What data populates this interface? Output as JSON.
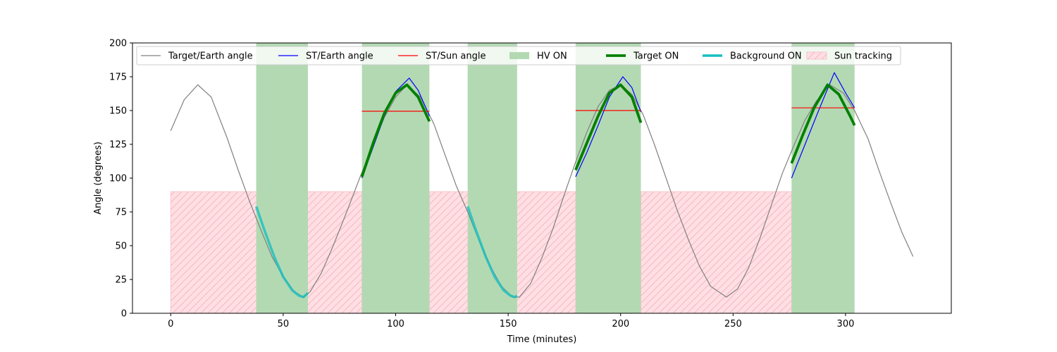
{
  "chart_data": {
    "type": "line",
    "title": "",
    "xlabel": "Time (minutes)",
    "ylabel": "Angle (degrees)",
    "xlim": [
      -17,
      347
    ],
    "ylim": [
      0,
      200
    ],
    "xticks": [
      0,
      50,
      100,
      150,
      200,
      250,
      300
    ],
    "yticks": [
      0,
      25,
      50,
      75,
      100,
      125,
      150,
      175,
      200
    ],
    "grid": false,
    "legend_position": "top",
    "colors": {
      "target_earth": "#808080",
      "st_earth": "#0000ff",
      "st_sun": "#ff0000",
      "hv_on": "#b3d9b3",
      "target_on": "#008000",
      "background_on": "#17bfbf",
      "sun_tracking_fill": "#ffdfe4",
      "sun_tracking_hatch": "#f4b8bf"
    },
    "legend": [
      {
        "key": "target_earth",
        "label": "Target/Earth angle"
      },
      {
        "key": "st_earth",
        "label": "ST/Earth angle"
      },
      {
        "key": "st_sun",
        "label": "ST/Sun angle"
      },
      {
        "key": "hv_on",
        "label": "HV ON"
      },
      {
        "key": "target_on",
        "label": "Target ON"
      },
      {
        "key": "background_on",
        "label": "Background ON"
      },
      {
        "key": "sun_tracking",
        "label": "Sun tracking"
      }
    ],
    "target_earth_angle": {
      "x": [
        0,
        6,
        12,
        18,
        25,
        30,
        35,
        40,
        45,
        50,
        55,
        59,
        62,
        67,
        72,
        78,
        84,
        90,
        95,
        100,
        105,
        111,
        117,
        122,
        127,
        132,
        137,
        142,
        147,
        152,
        155,
        160,
        165,
        170,
        175,
        180,
        185,
        190,
        195,
        200,
        205,
        210,
        215,
        220,
        225,
        230,
        235,
        240,
        247,
        252,
        257,
        262,
        267,
        272,
        277,
        282,
        287,
        293,
        299,
        304,
        310,
        315,
        320,
        325,
        330
      ],
      "y": [
        135,
        158,
        169,
        160,
        130,
        106,
        83,
        62,
        42,
        27,
        16,
        12,
        16,
        30,
        49,
        74,
        100,
        125,
        145,
        160,
        169,
        160,
        140,
        117,
        94,
        75,
        54,
        35,
        20,
        12,
        12,
        22,
        41,
        63,
        88,
        112,
        134,
        153,
        165,
        169,
        162,
        147,
        125,
        101,
        77,
        55,
        35,
        20,
        12,
        18,
        34,
        56,
        80,
        104,
        124,
        143,
        157,
        169,
        163,
        150,
        129,
        105,
        82,
        60,
        42
      ]
    },
    "hv_on": [
      [
        38,
        61
      ],
      [
        85,
        115
      ],
      [
        132,
        154
      ],
      [
        180,
        209
      ],
      [
        276,
        304
      ]
    ],
    "sun_tracking": {
      "ranges": [
        [
          0,
          85
        ],
        [
          115,
          180
        ],
        [
          209,
          276
        ]
      ],
      "y": [
        0,
        90
      ]
    },
    "target_on": [
      {
        "x": [
          85,
          90,
          95,
          100,
          105,
          110,
          115
        ],
        "y": [
          101,
          126,
          148,
          163,
          169,
          160,
          142
        ]
      },
      {
        "x": [
          180,
          185,
          190,
          195,
          200,
          205,
          209
        ],
        "y": [
          106,
          126,
          146,
          163,
          169,
          160,
          141
        ]
      },
      {
        "x": [
          276,
          281,
          286,
          292,
          297,
          302,
          304
        ],
        "y": [
          111,
          132,
          152,
          169,
          162,
          146,
          139
        ]
      }
    ],
    "background_on": [
      {
        "x": [
          38,
          42,
          46,
          50,
          54,
          57,
          59,
          61
        ],
        "y": [
          79,
          60,
          42,
          27,
          17,
          13,
          12,
          15
        ]
      },
      {
        "x": [
          132,
          136,
          140,
          144,
          148,
          151,
          153,
          154
        ],
        "y": [
          79,
          60,
          42,
          27,
          17,
          13,
          12,
          13
        ]
      }
    ],
    "st_earth_angle": [
      {
        "x": [
          85,
          90,
          95,
          100,
          106,
          110,
          115
        ],
        "y": [
          100,
          123,
          146,
          164,
          174,
          165,
          146
        ]
      },
      {
        "x": [
          180,
          185,
          190,
          195,
          201,
          205,
          209
        ],
        "y": [
          101,
          119,
          139,
          160,
          175,
          167,
          149
        ]
      },
      {
        "x": [
          276,
          282,
          288,
          295,
          300,
          304
        ],
        "y": [
          100,
          125,
          150,
          178,
          163,
          152
        ]
      }
    ],
    "st_sun_angle": [
      {
        "x": [
          85,
          115
        ],
        "y": [
          149.5,
          149.5
        ]
      },
      {
        "x": [
          180,
          209
        ],
        "y": [
          150,
          150
        ]
      },
      {
        "x": [
          276,
          304
        ],
        "y": [
          152,
          152
        ]
      }
    ]
  }
}
